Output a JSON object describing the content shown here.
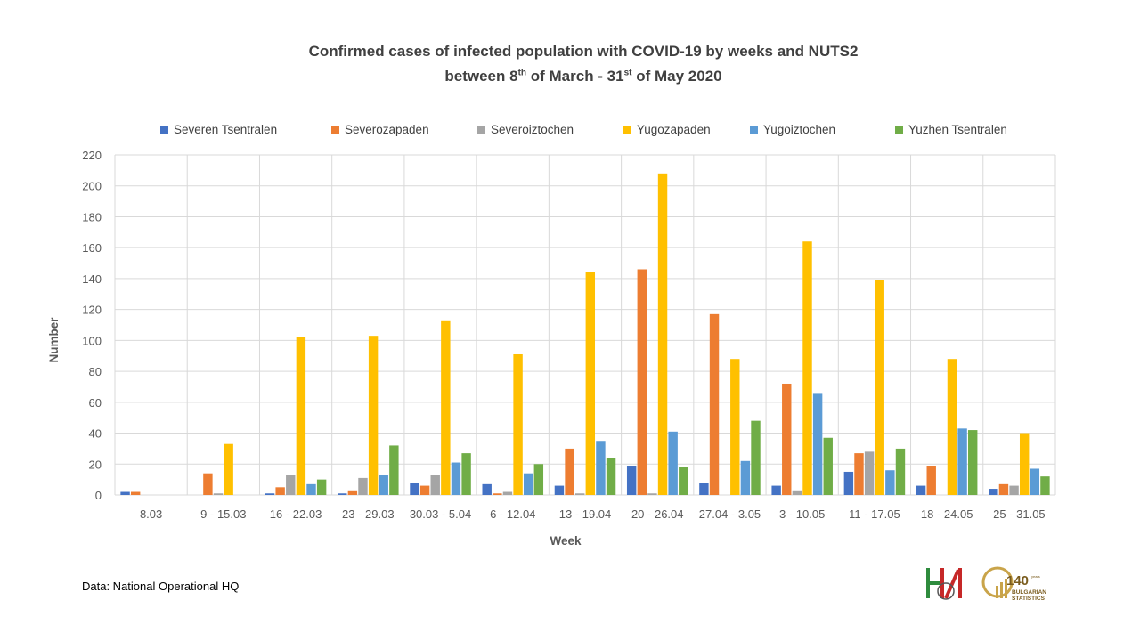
{
  "title": {
    "line1": "Confirmed  cases of infected population  with COVID-19 by weeks and NUTS2",
    "line2_a": "between 8",
    "line2_sup1": "th",
    "line2_b": " of March  - 31",
    "line2_sup2": "st",
    "line2_c": " of May 2020"
  },
  "source": "Data: National Operational HQ",
  "logo": {
    "number": "140",
    "small": "years",
    "line1": "BULGARIAN",
    "line2": "STATISTICS"
  },
  "colors": {
    "Severen Tsentralen": "#4472C4",
    "Severozapaden": "#ED7D31",
    "Severoiztochen": "#A5A5A5",
    "Yugozapaden": "#FFC000",
    "Yugoiztochen": "#5B9BD5",
    "Yuzhen Tsentralen": "#70AD47"
  },
  "chart_data": {
    "type": "bar",
    "title": "Confirmed cases of infected population with COVID-19 by weeks and NUTS2 between 8th of March - 31st of May 2020",
    "xlabel": "Week",
    "ylabel": "Number",
    "ylim": [
      0,
      220
    ],
    "yticks": [
      0,
      20,
      40,
      60,
      80,
      100,
      120,
      140,
      160,
      180,
      200,
      220
    ],
    "grid": true,
    "legend_position": "top",
    "categories": [
      "8.03",
      "9 - 15.03",
      "16 - 22.03",
      "23 - 29.03",
      "30.03 - 5.04",
      "6 - 12.04",
      "13 - 19.04",
      "20 - 26.04",
      "27.04  - 3.05",
      "3 - 10.05",
      "11 - 17.05",
      "18 - 24.05",
      "25 - 31.05"
    ],
    "series": [
      {
        "name": "Severen Tsentralen",
        "values": [
          2,
          0,
          1,
          1,
          8,
          7,
          6,
          19,
          8,
          6,
          15,
          6,
          4
        ]
      },
      {
        "name": "Severozapaden",
        "values": [
          2,
          14,
          5,
          3,
          6,
          1,
          30,
          146,
          117,
          72,
          27,
          19,
          7
        ]
      },
      {
        "name": "Severoiztochen",
        "values": [
          0,
          1,
          13,
          11,
          13,
          2,
          1,
          1,
          0,
          3,
          28,
          0,
          6
        ]
      },
      {
        "name": "Yugozapaden",
        "values": [
          0,
          33,
          102,
          103,
          113,
          91,
          144,
          208,
          88,
          164,
          139,
          88,
          40
        ]
      },
      {
        "name": "Yugoiztochen",
        "values": [
          0,
          0,
          7,
          13,
          21,
          14,
          35,
          41,
          22,
          66,
          16,
          43,
          17
        ]
      },
      {
        "name": "Yuzhen Tsentralen",
        "values": [
          0,
          0,
          10,
          32,
          27,
          20,
          24,
          18,
          48,
          37,
          30,
          42,
          12
        ]
      }
    ]
  }
}
